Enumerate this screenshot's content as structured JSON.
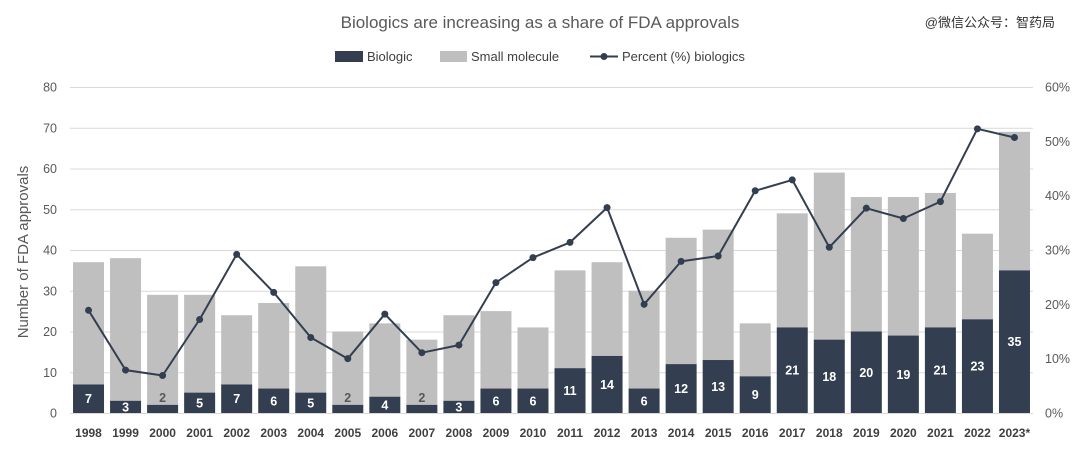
{
  "watermark": "@微信公众号：智药局",
  "chart_data": {
    "type": "bar",
    "title": "Biologics are increasing as a share of FDA approvals",
    "ylabel": "Number of FDA approvals",
    "ylim": [
      0,
      80
    ],
    "y2lim": [
      0,
      60
    ],
    "yticks": [
      "0",
      "10",
      "20",
      "30",
      "40",
      "50",
      "60",
      "70",
      "80"
    ],
    "y2ticks": [
      "0%",
      "10%",
      "20%",
      "30%",
      "40%",
      "50%",
      "60%"
    ],
    "grid": true,
    "legend": "top-center",
    "stacked": true,
    "categories": [
      "1998",
      "1999",
      "2000",
      "2001",
      "2002",
      "2003",
      "2004",
      "2005",
      "2006",
      "2007",
      "2008",
      "2009",
      "2010",
      "2011",
      "2012",
      "2013",
      "2014",
      "2015",
      "2016",
      "2017",
      "2018",
      "2019",
      "2020",
      "2021",
      "2022",
      "2023*"
    ],
    "series": [
      {
        "name": "Biologic",
        "type": "bar",
        "axis": "left",
        "color": "#333f50",
        "values": [
          7,
          3,
          2,
          5,
          7,
          6,
          5,
          2,
          4,
          2,
          3,
          6,
          6,
          11,
          14,
          6,
          12,
          13,
          9,
          21,
          18,
          20,
          19,
          21,
          23,
          35
        ]
      },
      {
        "name": "Small molecule",
        "type": "bar",
        "axis": "left",
        "color": "#bfbfbf",
        "values": [
          30,
          35,
          27,
          24,
          17,
          21,
          31,
          18,
          18,
          16,
          21,
          19,
          15,
          24,
          23,
          24,
          31,
          32,
          13,
          28,
          41,
          33,
          34,
          33,
          21,
          34
        ]
      },
      {
        "name": "Percent (%) biologics",
        "type": "line",
        "axis": "right",
        "color": "#333f50",
        "values": [
          18.9,
          7.9,
          6.9,
          17.2,
          29.2,
          22.2,
          13.9,
          10.0,
          18.2,
          11.1,
          12.5,
          24.0,
          28.6,
          31.4,
          37.8,
          20.0,
          27.9,
          28.9,
          40.9,
          42.9,
          30.5,
          37.7,
          35.8,
          38.9,
          52.3,
          50.7
        ]
      }
    ]
  }
}
